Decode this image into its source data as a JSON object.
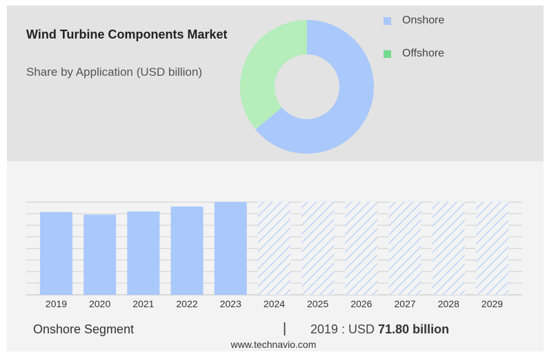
{
  "chart_title": "Wind Turbine Components Market",
  "chart_subtitle": "Share by Application (USD billion)",
  "legend": [
    {
      "label": "Onshore",
      "color": "#a9c8fb"
    },
    {
      "label": "Offshore",
      "color": "#73db8f"
    }
  ],
  "chart_data": [
    {
      "type": "pie",
      "categories": [
        "Onshore",
        "Offshore"
      ],
      "values": [
        64,
        36
      ],
      "colors": [
        "#a9c8fb",
        "#b5edbb"
      ]
    },
    {
      "type": "bar",
      "categories": [
        "2019",
        "2020",
        "2021",
        "2022",
        "2023",
        "2024",
        "2025",
        "2026",
        "2027",
        "2028",
        "2029"
      ],
      "values": [
        71.8,
        69.5,
        72.2,
        76.5,
        80.6,
        80.6,
        80.6,
        80.6,
        80.6,
        80.6,
        80.6
      ],
      "forecast_from": "2024",
      "color": "#a9c8fb",
      "grid": true
    }
  ],
  "footer": {
    "segment_label": "Onshore Segment",
    "separator": "|",
    "value_prefix": "2019 : USD",
    "value_bold": "71.80 billion"
  },
  "source": "www.technavio.com"
}
